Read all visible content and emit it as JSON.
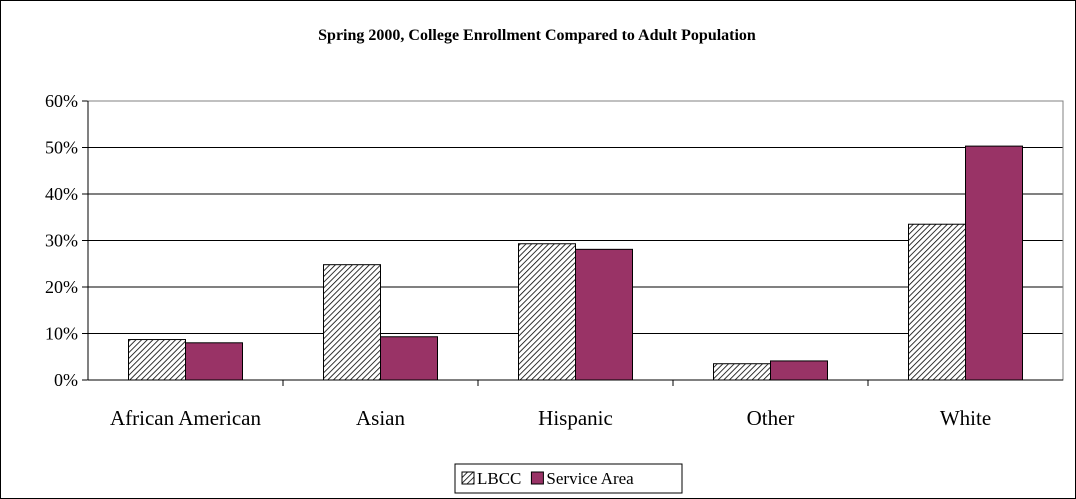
{
  "chart_data": {
    "type": "bar",
    "title": "Spring 2000, College Enrollment Compared to Adult Population",
    "xlabel": "",
    "ylabel": "",
    "categories": [
      "African American",
      "Asian",
      "Hispanic",
      "Other",
      "White"
    ],
    "series": [
      {
        "name": "LBCC",
        "values": [
          8.7,
          24.8,
          29.3,
          3.5,
          33.5
        ],
        "fill": "hatch",
        "color": "#000000"
      },
      {
        "name": "Service Area",
        "values": [
          8.0,
          9.3,
          28.1,
          4.1,
          50.3
        ],
        "fill": "solid",
        "color": "#993366"
      }
    ],
    "ylim": [
      0,
      60
    ],
    "yticks": [
      0,
      10,
      20,
      30,
      40,
      50,
      60
    ],
    "ytick_labels": [
      "0%",
      "10%",
      "20%",
      "30%",
      "40%",
      "50%",
      "60%"
    ],
    "grid": true,
    "legend": "bottom-center"
  }
}
